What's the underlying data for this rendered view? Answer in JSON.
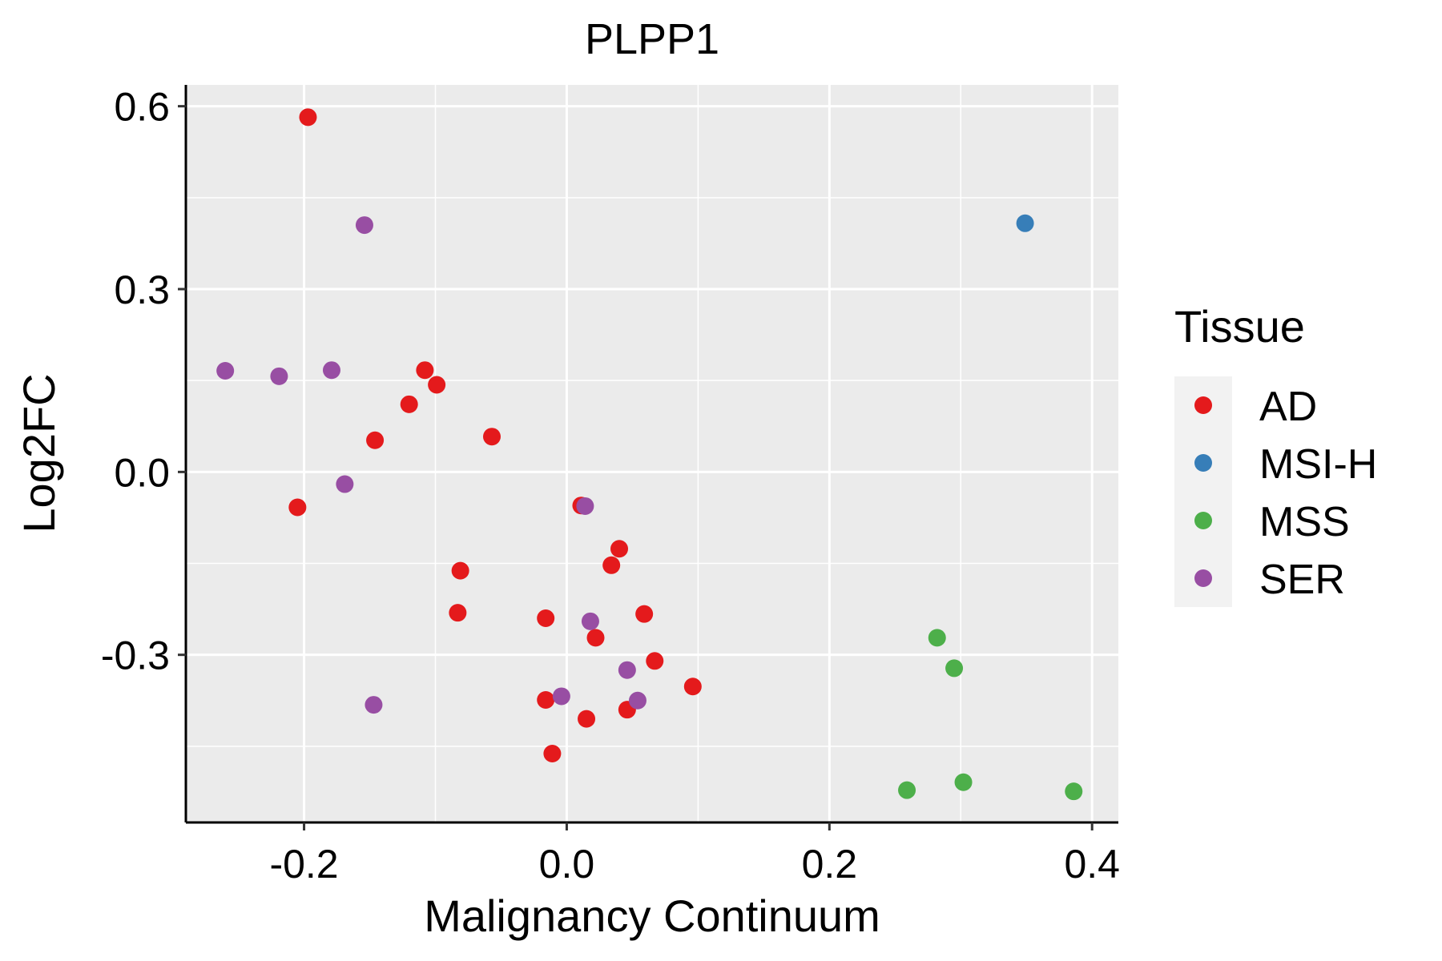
{
  "chart_data": {
    "type": "scatter",
    "title": "PLPP1",
    "xlabel": "Malignancy Continuum",
    "ylabel": "Log2FC",
    "xlim": [
      -0.29,
      0.42
    ],
    "ylim": [
      -0.575,
      0.635
    ],
    "xticks": [
      -0.2,
      0.0,
      0.2,
      0.4
    ],
    "xtick_labels": [
      "-0.2",
      "0.0",
      "0.2",
      "0.4"
    ],
    "yticks": [
      -0.3,
      0.0,
      0.3,
      0.6
    ],
    "ytick_labels": [
      "-0.3",
      "0.0",
      "0.3",
      "0.6"
    ],
    "grid": true,
    "legend": {
      "title": "Tissue",
      "position": "right",
      "entries": [
        {
          "name": "AD",
          "color": "#e41a1c"
        },
        {
          "name": "MSI-H",
          "color": "#377eb8"
        },
        {
          "name": "MSS",
          "color": "#4daf4a"
        },
        {
          "name": "SER",
          "color": "#984ea3"
        }
      ]
    },
    "series": [
      {
        "name": "AD",
        "color": "#e41a1c",
        "x": [
          -0.197,
          -0.108,
          -0.099,
          -0.12,
          -0.146,
          -0.057,
          -0.205,
          0.011,
          0.04,
          0.034,
          -0.081,
          -0.083,
          -0.016,
          0.059,
          0.022,
          0.067,
          0.096,
          -0.016,
          0.015,
          0.046,
          -0.011
        ],
        "y": [
          0.582,
          0.167,
          0.143,
          0.111,
          0.052,
          0.058,
          -0.058,
          -0.055,
          -0.126,
          -0.153,
          -0.162,
          -0.231,
          -0.24,
          -0.233,
          -0.272,
          -0.31,
          -0.352,
          -0.374,
          -0.405,
          -0.39,
          -0.462
        ]
      },
      {
        "name": "MSI-H",
        "color": "#377eb8",
        "x": [
          0.349
        ],
        "y": [
          0.408
        ]
      },
      {
        "name": "MSS",
        "color": "#4daf4a",
        "x": [
          0.282,
          0.295,
          0.259,
          0.302,
          0.386
        ],
        "y": [
          -0.272,
          -0.322,
          -0.522,
          -0.509,
          -0.524
        ]
      },
      {
        "name": "SER",
        "color": "#984ea3",
        "x": [
          -0.154,
          -0.26,
          -0.219,
          -0.179,
          -0.169,
          0.014,
          0.018,
          0.046,
          -0.004,
          0.054,
          -0.147
        ],
        "y": [
          0.405,
          0.166,
          0.157,
          0.167,
          -0.02,
          -0.056,
          -0.245,
          -0.325,
          -0.368,
          -0.375,
          -0.382
        ]
      }
    ]
  }
}
